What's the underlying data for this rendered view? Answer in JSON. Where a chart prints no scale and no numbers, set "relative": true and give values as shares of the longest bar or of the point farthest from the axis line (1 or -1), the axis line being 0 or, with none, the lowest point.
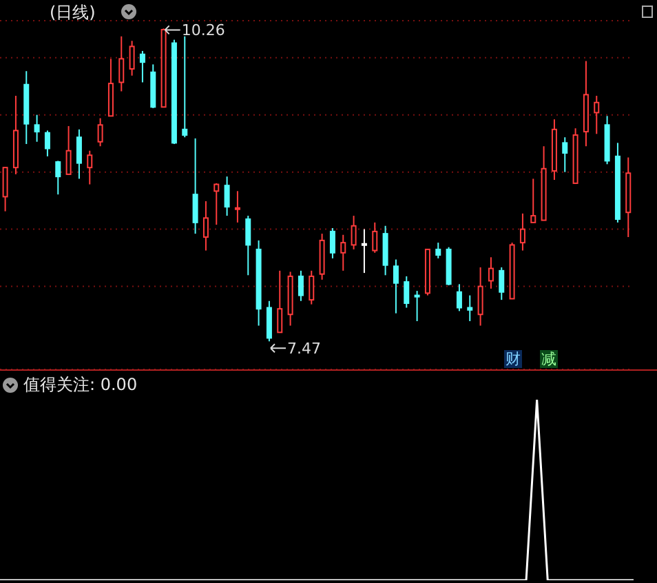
{
  "chart_data": [
    {
      "type": "candlestick",
      "title": "(日线)",
      "categories": [
        null,
        null,
        null,
        null,
        null,
        null,
        null,
        null,
        null,
        null,
        null,
        null,
        null,
        null,
        null,
        null,
        null,
        null,
        null,
        null,
        null,
        null,
        null,
        null,
        null,
        null,
        null,
        null,
        null,
        null,
        null,
        null,
        null,
        null,
        null,
        null,
        null,
        null,
        null,
        null,
        null,
        null,
        null,
        null,
        null,
        null,
        null,
        null,
        null,
        null,
        null,
        null,
        null,
        null,
        null,
        null,
        null,
        null,
        null,
        null
      ],
      "ohlc": [
        [
          8.76,
          9.02,
          8.63,
          9.02
        ],
        [
          9.02,
          9.66,
          8.96,
          9.35
        ],
        [
          9.76,
          9.88,
          9.23,
          9.41
        ],
        [
          9.4,
          9.49,
          9.25,
          9.34
        ],
        [
          9.33,
          9.35,
          9.12,
          9.19
        ],
        [
          9.07,
          9.08,
          8.78,
          8.94
        ],
        [
          8.96,
          9.39,
          8.96,
          9.17
        ],
        [
          9.29,
          9.36,
          8.92,
          9.06
        ],
        [
          9.02,
          9.17,
          8.87,
          9.13
        ],
        [
          9.25,
          9.46,
          9.21,
          9.4
        ],
        [
          9.48,
          9.99,
          9.48,
          9.77
        ],
        [
          9.78,
          10.19,
          9.7,
          9.99
        ],
        [
          9.9,
          10.15,
          9.84,
          10.1
        ],
        [
          10.03,
          10.06,
          9.78,
          9.96
        ],
        [
          9.87,
          9.94,
          9.55,
          9.56
        ],
        [
          9.56,
          10.26,
          9.56,
          10.25
        ],
        [
          10.13,
          10.16,
          9.23,
          9.24
        ],
        [
          9.36,
          10.19,
          9.29,
          9.31
        ],
        [
          8.78,
          9.28,
          8.43,
          8.53
        ],
        [
          8.4,
          8.72,
          8.28,
          8.57
        ],
        [
          8.81,
          8.88,
          8.51,
          8.87
        ],
        [
          8.86,
          8.94,
          8.59,
          8.67
        ],
        [
          8.65,
          8.81,
          8.53,
          8.66
        ],
        [
          8.56,
          8.59,
          8.06,
          8.33
        ],
        [
          8.29,
          8.37,
          7.61,
          7.76
        ],
        [
          7.77,
          7.83,
          7.47,
          7.5
        ],
        [
          7.55,
          8.1,
          7.55,
          7.76
        ],
        [
          7.71,
          8.09,
          7.61,
          8.05
        ],
        [
          8.05,
          8.1,
          7.83,
          7.88
        ],
        [
          7.84,
          8.1,
          7.8,
          8.05
        ],
        [
          8.07,
          8.43,
          8.02,
          8.37
        ],
        [
          8.45,
          8.48,
          8.21,
          8.26
        ],
        [
          8.26,
          8.42,
          8.1,
          8.35
        ],
        [
          8.33,
          8.59,
          8.29,
          8.5
        ],
        [
          8.34,
          8.47,
          8.08,
          8.34
        ],
        [
          8.28,
          8.53,
          8.26,
          8.45
        ],
        [
          8.43,
          8.5,
          8.06,
          8.15
        ],
        [
          8.14,
          8.2,
          7.72,
          7.99
        ],
        [
          8.0,
          8.05,
          7.77,
          7.81
        ],
        [
          7.88,
          7.92,
          7.65,
          7.87
        ],
        [
          7.9,
          8.29,
          7.88,
          8.29
        ],
        [
          8.29,
          8.35,
          8.21,
          8.24
        ],
        [
          8.29,
          8.31,
          7.97,
          7.98
        ],
        [
          7.91,
          7.98,
          7.74,
          7.77
        ],
        [
          7.77,
          7.88,
          7.65,
          7.75
        ],
        [
          7.71,
          8.13,
          7.61,
          7.96
        ],
        [
          8.01,
          8.22,
          7.94,
          8.12
        ],
        [
          8.1,
          8.13,
          7.84,
          7.91
        ],
        [
          7.85,
          8.35,
          7.85,
          8.33
        ],
        [
          8.35,
          8.61,
          8.28,
          8.47
        ],
        [
          8.53,
          8.92,
          8.53,
          8.59
        ],
        [
          8.55,
          9.21,
          8.55,
          9.01
        ],
        [
          8.99,
          9.45,
          8.91,
          9.36
        ],
        [
          9.24,
          9.29,
          8.98,
          9.15
        ],
        [
          8.88,
          9.37,
          8.88,
          9.31
        ],
        [
          9.34,
          9.97,
          9.21,
          9.67
        ],
        [
          9.51,
          9.66,
          9.32,
          9.6
        ],
        [
          9.4,
          9.48,
          9.05,
          9.08
        ],
        [
          9.12,
          9.24,
          8.53,
          8.56
        ],
        [
          8.62,
          9.11,
          8.4,
          8.97
        ]
      ],
      "colors": [
        "#ff3c3c",
        "#ff3c3c",
        "#54fcfc",
        "#54fcfc",
        "#54fcfc",
        "#54fcfc",
        "#ff3c3c",
        "#54fcfc",
        "#ff3c3c",
        "#ff3c3c",
        "#ff3c3c",
        "#ff3c3c",
        "#ff3c3c",
        "#54fcfc",
        "#54fcfc",
        "#ff3c3c",
        "#54fcfc",
        "#54fcfc",
        "#54fcfc",
        "#ff3c3c",
        "#ff3c3c",
        "#54fcfc",
        "#ff3c3c",
        "#54fcfc",
        "#54fcfc",
        "#54fcfc",
        "#ff3c3c",
        "#ff3c3c",
        "#54fcfc",
        "#ff3c3c",
        "#ff3c3c",
        "#54fcfc",
        "#ff3c3c",
        "#ff3c3c",
        "#ffffff",
        "#ff3c3c",
        "#54fcfc",
        "#54fcfc",
        "#54fcfc",
        "#54fcfc",
        "#ff3c3c",
        "#54fcfc",
        "#54fcfc",
        "#54fcfc",
        "#54fcfc",
        "#ff3c3c",
        "#ff3c3c",
        "#54fcfc",
        "#ff3c3c",
        "#ff3c3c",
        "#ff3c3c",
        "#ff3c3c",
        "#ff3c3c",
        "#54fcfc",
        "#ff3c3c",
        "#ff3c3c",
        "#ff3c3c",
        "#54fcfc",
        "#54fcfc",
        "#ff3c3c"
      ],
      "ylim": [
        7.22,
        10.33
      ],
      "yticks": [
        {
          "value": 7.96,
          "label": null
        },
        {
          "value": 8.47,
          "label": null
        },
        {
          "value": 8.98,
          "label": null
        },
        {
          "value": 9.49,
          "label": null
        },
        {
          "value": 10.0,
          "label": null
        }
      ],
      "grid": "y",
      "tick_labels": false,
      "annotations": [
        "10.26",
        "7.47",
        "财",
        "减"
      ]
    },
    {
      "type": "line",
      "relative": true,
      "tick_labels": false,
      "categories": [
        null,
        null,
        null,
        null,
        null,
        null,
        null,
        null,
        null,
        null,
        null,
        null,
        null,
        null,
        null,
        null,
        null,
        null,
        null,
        null,
        null,
        null,
        null,
        null,
        null,
        null,
        null,
        null,
        null,
        null,
        null,
        null,
        null,
        null,
        null,
        null,
        null,
        null,
        null,
        null,
        null,
        null,
        null,
        null,
        null,
        null,
        null,
        null,
        null,
        null,
        null,
        null,
        null,
        null,
        null,
        null,
        null,
        null,
        null,
        null
      ],
      "series": [
        {
          "color": "#ffffff",
          "values": [
            0,
            0,
            0,
            0,
            0,
            0,
            0,
            0,
            0,
            0,
            0,
            0,
            0,
            0,
            0,
            0,
            0,
            0,
            0,
            0,
            0,
            0,
            0,
            0,
            0,
            0,
            0,
            0,
            0,
            0,
            0,
            0,
            0,
            0,
            0,
            0,
            0,
            0,
            0,
            0,
            0,
            0,
            0,
            0,
            0,
            0,
            0,
            0,
            0,
            0,
            1,
            0,
            0,
            0,
            0,
            0,
            0,
            0,
            0,
            0
          ]
        }
      ],
      "annotations": [
        "值得关注: 0.00"
      ]
    }
  ]
}
